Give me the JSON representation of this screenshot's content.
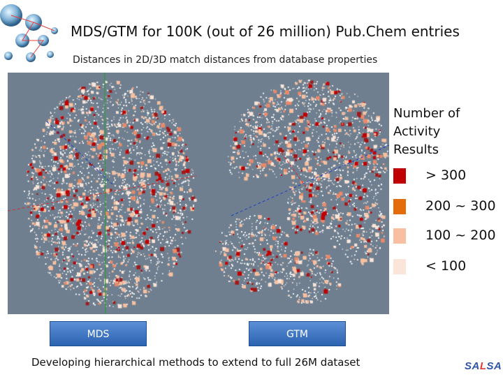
{
  "header": {
    "title": "MDS/GTM for 100K (out of 26 million) Pub.Chem entries",
    "subtitle": "Distances in 2D/3D match distances from database properties"
  },
  "legend": {
    "title": "Number of\nActivity\nResults",
    "items": [
      {
        "label": "> 300",
        "color": "#c00000"
      },
      {
        "label": "200 ~ 300",
        "color": "#e46c0a"
      },
      {
        "label": "100 ~ 200",
        "color": "#f8c0a0"
      },
      {
        "label": "< 100",
        "color": "#fbe5d8"
      }
    ]
  },
  "buttons": {
    "mds": "MDS",
    "gtm": "GTM"
  },
  "footer": {
    "text": "Developing hierarchical methods to extend to full 26M dataset"
  },
  "branding": {
    "logo": {
      "s": "S",
      "a1": "A",
      "l": "L",
      "s2": "S",
      "a2": "A"
    }
  },
  "colors": {
    "plot_background": "#6f7f8f",
    "axis_green": "#2e9c3a",
    "axis_red": "#d03030",
    "axis_blue": "#2040c0",
    "button_blue": "#3a72c2"
  }
}
